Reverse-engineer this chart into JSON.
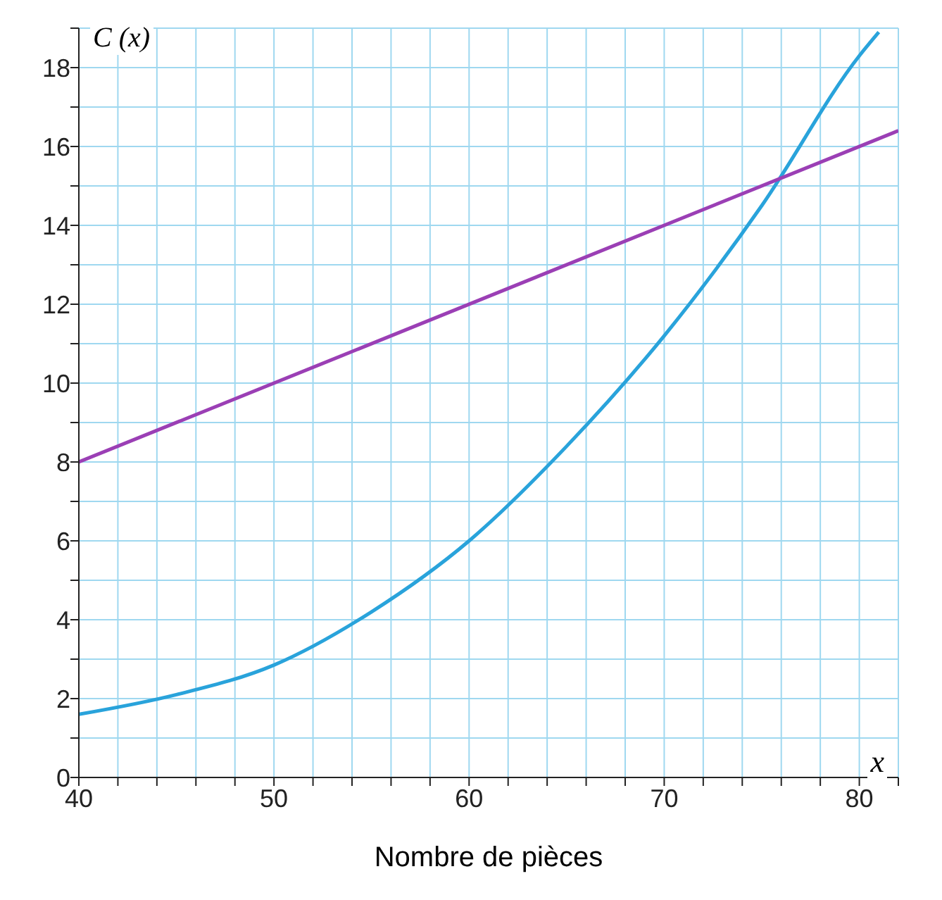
{
  "chart_data": {
    "type": "line",
    "xlabel": "Nombre de pièces",
    "ylabel": "C (x)",
    "annotations": [
      "x"
    ],
    "xlim": [
      40,
      82
    ],
    "ylim": [
      0,
      19
    ],
    "xticks": [
      40,
      {
        "value": 42,
        "label": null
      },
      {
        "value": 44,
        "label": null
      },
      {
        "value": 46,
        "label": null
      },
      {
        "value": 48,
        "label": null
      },
      50,
      {
        "value": 52,
        "label": null
      },
      {
        "value": 54,
        "label": null
      },
      {
        "value": 56,
        "label": null
      },
      {
        "value": 58,
        "label": null
      },
      60,
      {
        "value": 62,
        "label": null
      },
      {
        "value": 64,
        "label": null
      },
      {
        "value": 66,
        "label": null
      },
      {
        "value": 68,
        "label": null
      },
      70,
      {
        "value": 72,
        "label": null
      },
      {
        "value": 74,
        "label": null
      },
      {
        "value": 76,
        "label": null
      },
      {
        "value": 78,
        "label": null
      },
      80,
      {
        "value": 82,
        "label": null
      }
    ],
    "yticks": [
      0,
      {
        "value": 1,
        "label": null
      },
      2,
      {
        "value": 3,
        "label": null
      },
      4,
      {
        "value": 5,
        "label": null
      },
      6,
      {
        "value": 7,
        "label": null
      },
      8,
      {
        "value": 9,
        "label": null
      },
      10,
      {
        "value": 11,
        "label": null
      },
      12,
      {
        "value": 13,
        "label": null
      },
      14,
      {
        "value": 15,
        "label": null
      },
      16,
      {
        "value": 17,
        "label": null
      },
      18,
      {
        "value": 19,
        "label": null
      }
    ],
    "grid": true,
    "line_style": "solid",
    "series": [
      {
        "color": "#29a3db",
        "x": [
          40,
          45,
          50,
          55,
          60,
          65,
          70,
          75,
          80,
          81
        ],
        "values": [
          1.6,
          2.1,
          2.85,
          4.2,
          6.0,
          8.4,
          11.2,
          14.5,
          18.3,
          18.9
        ]
      },
      {
        "color": "#9b3fb5",
        "x": [
          40,
          82
        ],
        "values": [
          8,
          16.4
        ]
      }
    ]
  }
}
